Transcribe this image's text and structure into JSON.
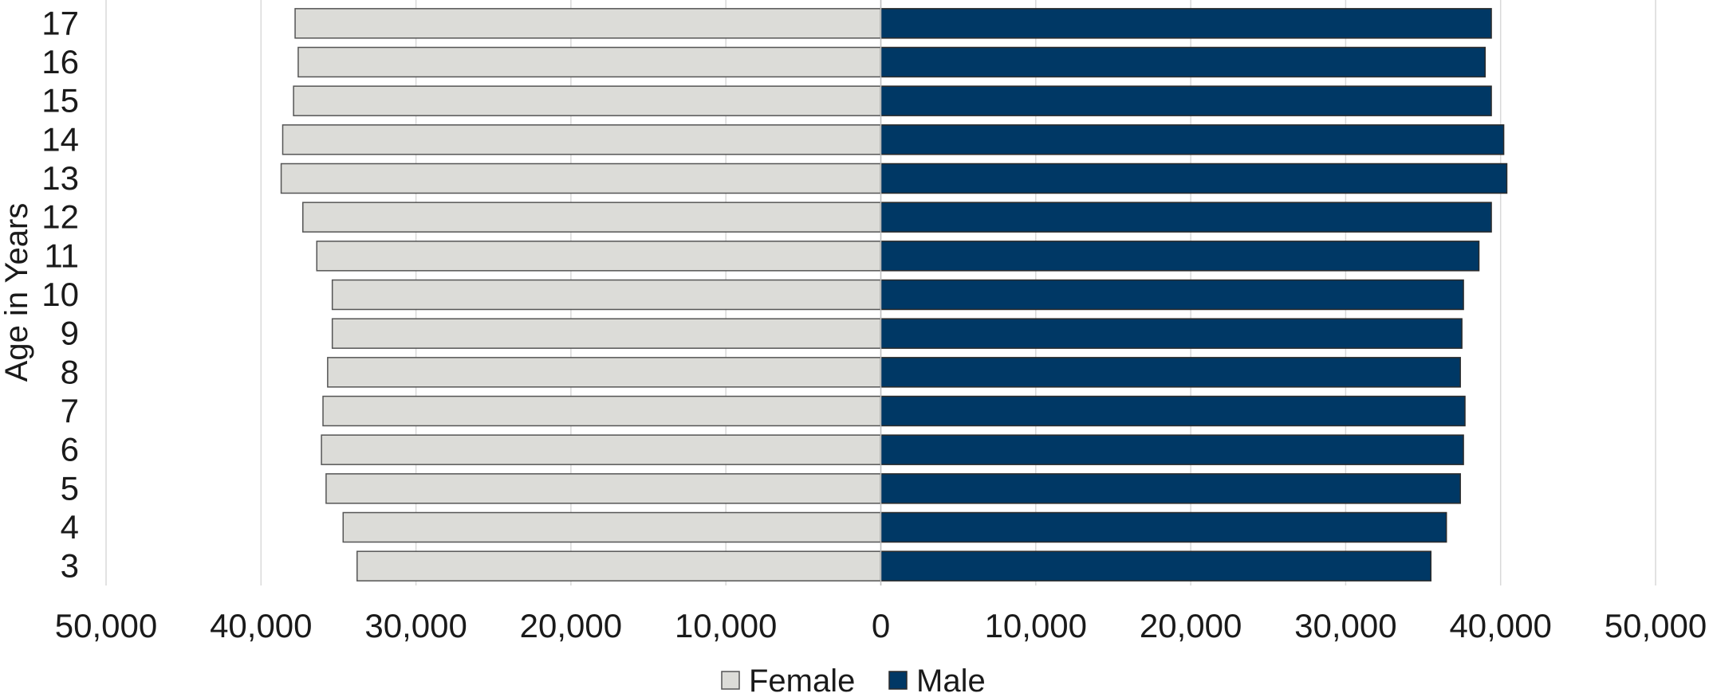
{
  "chart_data": {
    "type": "bar",
    "orientation": "horizontal",
    "title": "",
    "xlabel": "",
    "ylabel": "Age in Years",
    "categories": [
      "3",
      "4",
      "5",
      "6",
      "7",
      "8",
      "9",
      "10",
      "11",
      "12",
      "13",
      "14",
      "15",
      "16",
      "17"
    ],
    "series": [
      {
        "name": "Female",
        "color": "#dcdcd8",
        "values": [
          33800,
          34700,
          35800,
          36100,
          36000,
          35700,
          35400,
          35400,
          36400,
          37300,
          38700,
          38600,
          37900,
          37600,
          37800
        ]
      },
      {
        "name": "Male",
        "color": "#003865",
        "values": [
          35500,
          36500,
          37400,
          37600,
          37700,
          37400,
          37500,
          37600,
          38600,
          39400,
          40400,
          40200,
          39400,
          39000,
          39400
        ]
      }
    ],
    "xlim": [
      -50000,
      50000
    ],
    "xticks": [
      "50,000",
      "40,000",
      "30,000",
      "20,000",
      "10,000",
      "0",
      "10,000",
      "20,000",
      "30,000",
      "40,000",
      "50,000"
    ],
    "grid": "vertical",
    "legend": "bottom-center"
  }
}
